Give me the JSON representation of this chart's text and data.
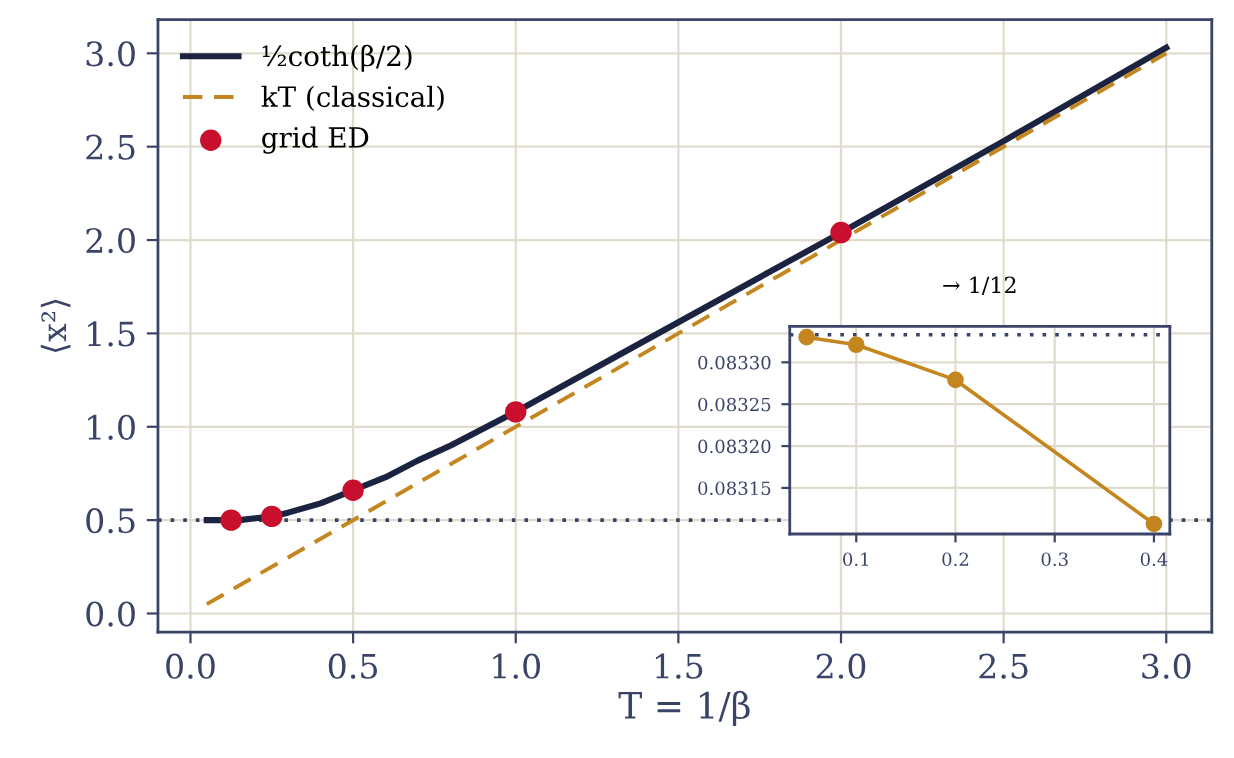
{
  "chart_data": [
    {
      "type": "line",
      "xlabel": "T = 1/β",
      "ylabel": "⟨x²⟩",
      "xlim": [
        -0.1,
        3.14
      ],
      "ylim": [
        -0.1,
        3.18
      ],
      "xticks": [
        {
          "value": 0,
          "label": "0.0"
        },
        0.5,
        {
          "value": 1,
          "label": "1.0"
        },
        1.5,
        {
          "value": 2,
          "label": "2.0"
        },
        2.5,
        {
          "value": 3,
          "label": "3.0"
        }
      ],
      "yticks": [
        {
          "value": 0,
          "label": "0.0"
        },
        0.5,
        {
          "value": 1,
          "label": "1.0"
        },
        1.5,
        {
          "value": 2,
          "label": "2.0"
        },
        2.5,
        {
          "value": 3,
          "label": "3.0"
        }
      ],
      "grid": true,
      "legend": "top left",
      "series": [
        {
          "name": "½coth(β/2)",
          "color": "#1b2340",
          "line_style": "solid",
          "marker": "none",
          "x": [
            0.05,
            0.1,
            0.15,
            0.2,
            0.25,
            0.3,
            0.4,
            0.5,
            0.6,
            0.7,
            0.8,
            1.0,
            1.25,
            1.5,
            2.0,
            2.5,
            3.0
          ],
          "values": [
            0.5,
            0.5,
            0.5,
            0.51,
            0.52,
            0.54,
            0.59,
            0.66,
            0.73,
            0.82,
            0.9,
            1.08,
            1.32,
            1.56,
            2.04,
            2.53,
            3.03
          ]
        },
        {
          "name": "kT (classical)",
          "color": "#c4871f",
          "line_style": "dashed",
          "marker": "none",
          "x": [
            0.05,
            3.0
          ],
          "values": [
            0.05,
            3.0
          ]
        },
        {
          "name": "grid ED",
          "type": "scatter",
          "color": "#c8102e",
          "marker": "circle",
          "x": [
            0.125,
            0.25,
            0.5,
            1.0,
            2.0
          ],
          "values": [
            0.5,
            0.52,
            0.66,
            1.08,
            2.04
          ]
        }
      ],
      "ref_lines": [
        {
          "axis": "y",
          "value": 0.5,
          "color": "#3a4468",
          "line_style": "dotted"
        }
      ]
    },
    {
      "type": "line",
      "title": "→ 1/12",
      "xlim": [
        0.033,
        0.416
      ],
      "ylim": [
        0.083095,
        0.083343
      ],
      "xticks": [
        0.1,
        0.2,
        0.3,
        0.4
      ],
      "yticks": [
        0.08315,
        {
          "value": 0.0832,
          "label": "0.08320"
        },
        0.08325,
        {
          "value": 0.0833,
          "label": "0.08330"
        }
      ],
      "grid": true,
      "series": [
        {
          "color": "#c4871f",
          "line_style": "solid",
          "marker": "circle",
          "x": [
            0.05,
            0.1,
            0.2,
            0.4
          ],
          "values": [
            0.08333,
            0.083321,
            0.083279,
            0.083107
          ]
        }
      ],
      "ref_lines": [
        {
          "axis": "y",
          "value": 0.083333,
          "color": "#3a4468",
          "line_style": "dotted"
        }
      ]
    }
  ]
}
